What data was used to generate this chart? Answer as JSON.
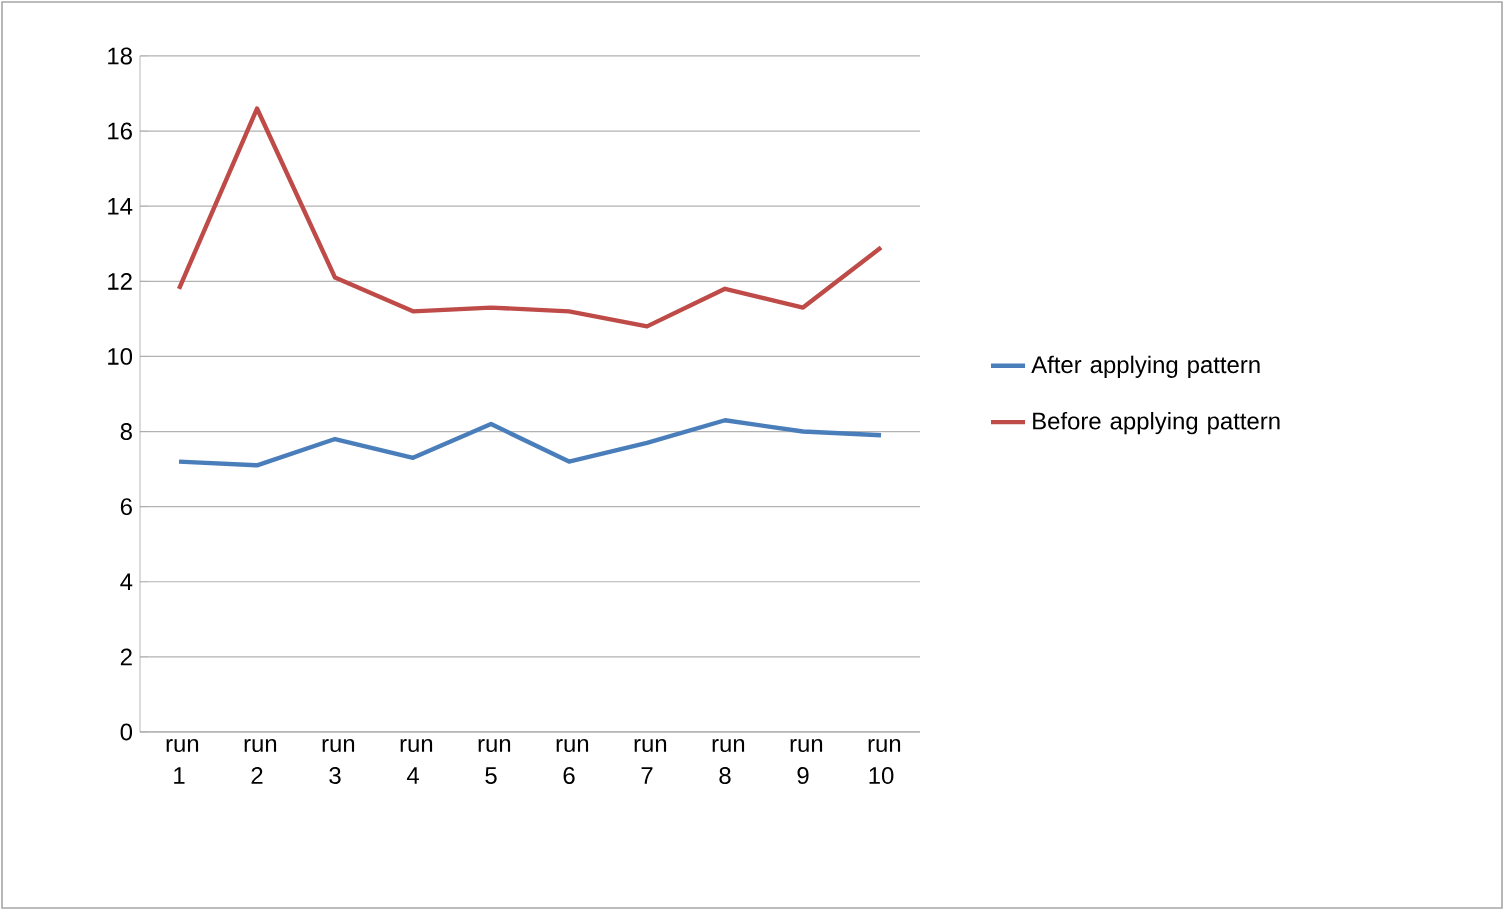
{
  "chart_data": {
    "type": "line",
    "categories": [
      "run 1",
      "run 2",
      "run 3",
      "run 4",
      "run 5",
      "run 6",
      "run 7",
      "run 8",
      "run 9",
      "run 10"
    ],
    "series": [
      {
        "name": "After applying pattern",
        "color": "#4a7ebb",
        "values": [
          7.2,
          7.1,
          7.8,
          7.3,
          8.2,
          7.2,
          7.7,
          8.3,
          8.0,
          7.9
        ]
      },
      {
        "name": "Before applying pattern",
        "color": "#be4b48",
        "values": [
          11.8,
          16.6,
          12.1,
          11.2,
          11.3,
          11.2,
          10.8,
          11.8,
          11.3,
          12.9
        ]
      }
    ],
    "ylim": [
      0,
      18
    ],
    "yticks": [
      0,
      2,
      4,
      6,
      8,
      10,
      12,
      14,
      16,
      18
    ],
    "grid": "y",
    "legend": "right",
    "marker": "none",
    "line_style": "solid"
  }
}
